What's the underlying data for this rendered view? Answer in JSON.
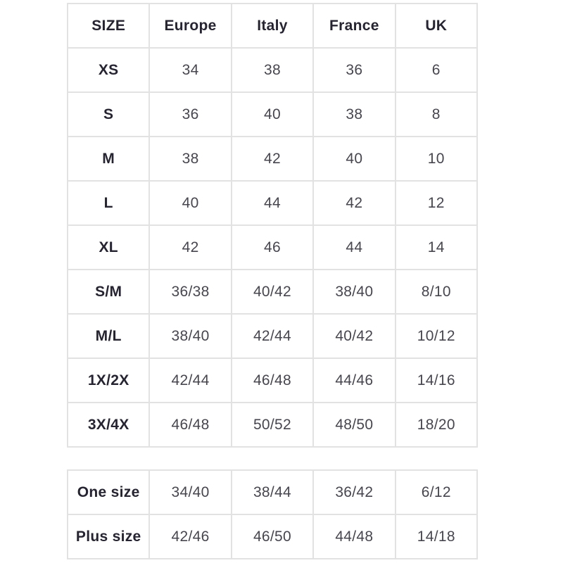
{
  "page": {
    "background_color": "#ffffff",
    "border_color": "#e2e2e2",
    "header_text_color": "#262430",
    "body_text_color": "#47464f"
  },
  "main_table": {
    "columns": [
      "SIZE",
      "Europe",
      "Italy",
      "France",
      "UK"
    ],
    "rows": [
      {
        "label": "XS",
        "values": [
          "34",
          "38",
          "36",
          "6"
        ]
      },
      {
        "label": "S",
        "values": [
          "36",
          "40",
          "38",
          "8"
        ]
      },
      {
        "label": "M",
        "values": [
          "38",
          "42",
          "40",
          "10"
        ]
      },
      {
        "label": "L",
        "values": [
          "40",
          "44",
          "42",
          "12"
        ]
      },
      {
        "label": "XL",
        "values": [
          "42",
          "46",
          "44",
          "14"
        ]
      },
      {
        "label": "S/M",
        "values": [
          "36/38",
          "40/42",
          "38/40",
          "8/10"
        ]
      },
      {
        "label": "M/L",
        "values": [
          "38/40",
          "42/44",
          "40/42",
          "10/12"
        ]
      },
      {
        "label": "1X/2X",
        "values": [
          "42/44",
          "46/48",
          "44/46",
          "14/16"
        ]
      },
      {
        "label": "3X/4X",
        "values": [
          "46/48",
          "50/52",
          "48/50",
          "18/20"
        ]
      }
    ]
  },
  "secondary_table": {
    "rows": [
      {
        "label": "One size",
        "values": [
          "34/40",
          "38/44",
          "36/42",
          "6/12"
        ]
      },
      {
        "label": "Plus size",
        "values": [
          "42/46",
          "46/50",
          "44/48",
          "14/18"
        ]
      }
    ]
  }
}
